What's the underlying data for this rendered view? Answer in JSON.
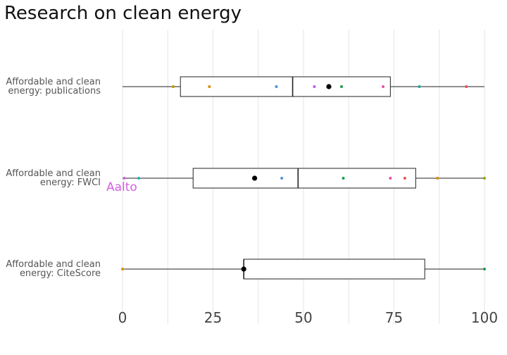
{
  "chart_data": {
    "type": "boxplot",
    "title": "Research on clean energy",
    "xlim": [
      0,
      100
    ],
    "x_ticks": [
      0,
      25,
      50,
      75,
      100
    ],
    "x_tick_labels": [
      "0",
      "25",
      "50",
      "75",
      "100"
    ],
    "grid": true,
    "rows": [
      {
        "label_lines": [
          "Affordable and clean",
          "energy: publications"
        ],
        "min": 0,
        "q1": 16,
        "median": 47,
        "q3": 74,
        "max": 100,
        "highlight": 57,
        "points": [
          {
            "x": 14,
            "color": "#b59a00"
          },
          {
            "x": 24,
            "color": "#e08a00"
          },
          {
            "x": 42.5,
            "color": "#4f8fd9"
          },
          {
            "x": 53,
            "color": "#c05ce0"
          },
          {
            "x": 60.5,
            "color": "#18a048"
          },
          {
            "x": 72,
            "color": "#e84fa4"
          },
          {
            "x": 82,
            "color": "#1aa3a3"
          },
          {
            "x": 95,
            "color": "#e85050"
          }
        ]
      },
      {
        "label_lines": [
          "Affordable and clean",
          "energy: FWCI"
        ],
        "min": 0,
        "q1": 19.5,
        "median": 48.5,
        "q3": 81,
        "max": 100,
        "highlight": 36.5,
        "annotation": {
          "text": "Aalto",
          "color": "#d65fe0"
        },
        "points": [
          {
            "x": 0.5,
            "color": "#d65fe0"
          },
          {
            "x": 4.5,
            "color": "#1ab0c0"
          },
          {
            "x": 44,
            "color": "#4f8fd9"
          },
          {
            "x": 61,
            "color": "#18a048"
          },
          {
            "x": 74,
            "color": "#e84fa4"
          },
          {
            "x": 78,
            "color": "#e85050"
          },
          {
            "x": 87,
            "color": "#e08a00"
          },
          {
            "x": 100,
            "color": "#9aa000"
          }
        ]
      },
      {
        "label_lines": [
          "Affordable and clean",
          "energy: CiteScore"
        ],
        "min": 0,
        "q1": 33.5,
        "median": 33.5,
        "q3": 83.5,
        "max": 100,
        "highlight": 33.5,
        "points": [
          {
            "x": 0,
            "color": "#e08a00"
          },
          {
            "x": 100,
            "color": "#18a048"
          }
        ]
      }
    ]
  }
}
